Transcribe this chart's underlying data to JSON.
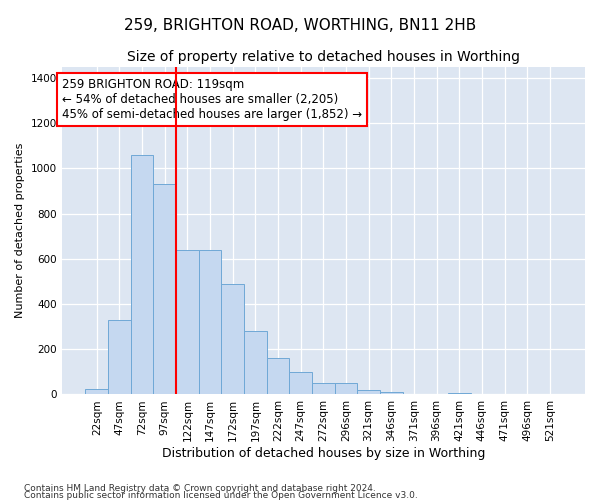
{
  "title": "259, BRIGHTON ROAD, WORTHING, BN11 2HB",
  "subtitle": "Size of property relative to detached houses in Worthing",
  "xlabel": "Distribution of detached houses by size in Worthing",
  "ylabel": "Number of detached properties",
  "footnote1": "Contains HM Land Registry data © Crown copyright and database right 2024.",
  "footnote2": "Contains public sector information licensed under the Open Government Licence v3.0.",
  "bar_labels": [
    "22sqm",
    "47sqm",
    "72sqm",
    "97sqm",
    "122sqm",
    "147sqm",
    "172sqm",
    "197sqm",
    "222sqm",
    "247sqm",
    "272sqm",
    "296sqm",
    "321sqm",
    "346sqm",
    "371sqm",
    "396sqm",
    "421sqm",
    "446sqm",
    "471sqm",
    "496sqm",
    "521sqm"
  ],
  "bar_values": [
    25,
    330,
    1060,
    930,
    640,
    640,
    490,
    280,
    160,
    100,
    50,
    50,
    20,
    10,
    0,
    0,
    5,
    0,
    0,
    0,
    0
  ],
  "bar_color": "#c5d8f0",
  "bar_edgecolor": "#6fa8d6",
  "background_color": "#dde6f2",
  "ylim": [
    0,
    1450
  ],
  "red_line_x": 3.5,
  "annotation_text": "259 BRIGHTON ROAD: 119sqm\n← 54% of detached houses are smaller (2,205)\n45% of semi-detached houses are larger (1,852) →",
  "annotation_box_color": "white",
  "annotation_box_edgecolor": "red",
  "title_fontsize": 11,
  "subtitle_fontsize": 10,
  "xlabel_fontsize": 9,
  "ylabel_fontsize": 8,
  "tick_fontsize": 7.5,
  "annotation_fontsize": 8.5
}
